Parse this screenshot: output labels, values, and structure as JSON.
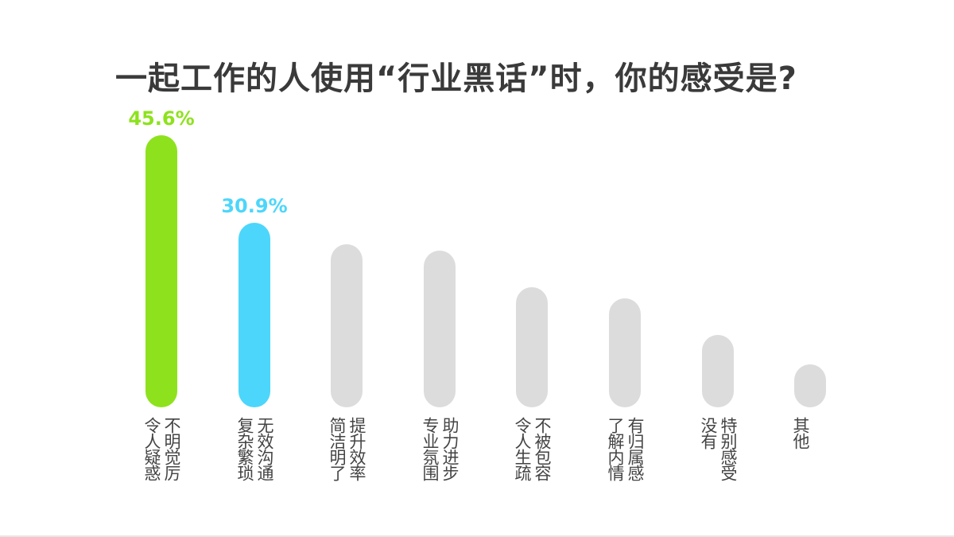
{
  "title": "一起工作的人使用“行业黑话”时，你的感受是?",
  "colors": {
    "highlight1": "#8ee21d",
    "highlight2": "#4dd6fb",
    "default": "#dcdcdc",
    "title": "#3a3a3a"
  },
  "chart_data": {
    "type": "bar",
    "title": "一起工作的人使用“行业黑话”时，你的感受是?",
    "xlabel": "",
    "ylabel": "",
    "grid": false,
    "legend": null,
    "categories": [
      "令人疑惑不明觉厉",
      "复杂繁琐无效沟通",
      "简洁明了提升效率",
      "专业氛围助力进步",
      "令人生疏不被包容",
      "了解内情有归属感",
      "没有特别感受",
      "其他"
    ],
    "values": [
      45.6,
      30.9,
      27.3,
      26.3,
      20.1,
      18.3,
      12.1,
      7.2
    ],
    "value_labels": [
      "45.6%",
      "30.9%",
      "",
      "",
      "",
      "",
      "",
      ""
    ],
    "ylim": [
      0,
      50
    ]
  },
  "bars": [
    {
      "value_label": "45.6%",
      "col1": "令人疑惑",
      "col2": "不明觉厉"
    },
    {
      "value_label": "30.9%",
      "col1": "复杂繁琐",
      "col2": "无效沟通"
    },
    {
      "value_label": "",
      "col1": "简洁明了",
      "col2": "提升效率"
    },
    {
      "value_label": "",
      "col1": "专业氛围",
      "col2": "助力进步"
    },
    {
      "value_label": "",
      "col1": "令人生疏",
      "col2": "不被包容"
    },
    {
      "value_label": "",
      "col1": "了解内情",
      "col2": "有归属感"
    },
    {
      "value_label": "",
      "col1": "没有",
      "col2": "特别感受"
    },
    {
      "value_label": "",
      "col1": "",
      "col2": "其他"
    }
  ]
}
